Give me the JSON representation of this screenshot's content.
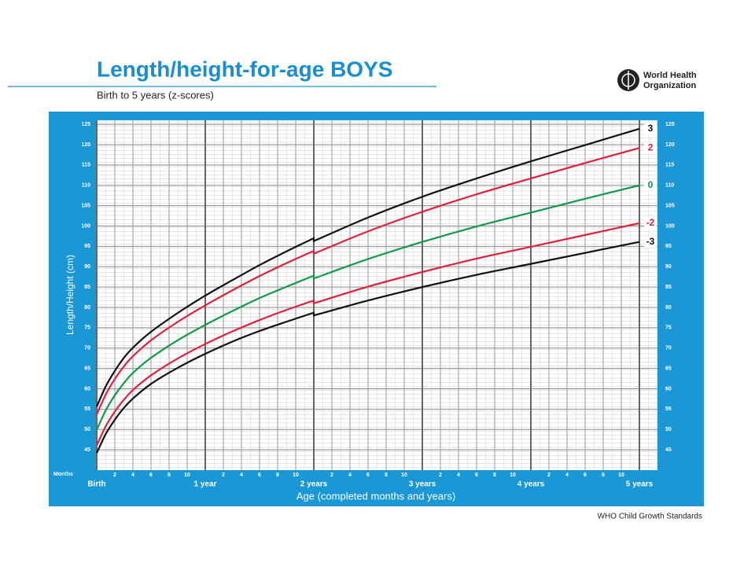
{
  "chart_data": {
    "type": "line",
    "title": "Length/height-for-age BOYS",
    "subtitle": "Birth to 5 years (z-scores)",
    "ylabel": "Length/Height (cm)",
    "xlabel": "Age (completed months and years)",
    "x_unit_label": "Months",
    "logo_text": [
      "World Health",
      "Organization"
    ],
    "source": "WHO Child Growth Standards",
    "x": [
      0,
      1,
      2,
      3,
      4,
      6,
      9,
      12,
      15,
      18,
      21,
      24,
      24,
      30,
      36,
      42,
      48,
      54,
      60
    ],
    "series": [
      {
        "name": "3",
        "color": "#111111",
        "values": [
          55.6,
          60.6,
          64.4,
          67.6,
          70.1,
          74.0,
          78.7,
          82.9,
          86.7,
          90.4,
          93.8,
          97.0,
          96.3,
          102.1,
          107.2,
          111.7,
          115.9,
          119.9,
          123.9
        ]
      },
      {
        "name": "2",
        "color": "#e0203c",
        "values": [
          53.7,
          58.6,
          62.4,
          65.5,
          68.0,
          71.9,
          76.5,
          80.5,
          84.2,
          87.7,
          90.9,
          93.9,
          93.2,
          98.7,
          103.5,
          107.8,
          111.7,
          115.5,
          119.2
        ]
      },
      {
        "name": "0",
        "color": "#109a4a",
        "values": [
          49.9,
          54.7,
          58.4,
          61.4,
          63.9,
          67.6,
          72.0,
          75.7,
          79.1,
          82.3,
          85.1,
          87.8,
          87.1,
          91.9,
          96.1,
          99.9,
          103.3,
          106.7,
          110.0
        ]
      },
      {
        "name": "-2",
        "color": "#e0203c",
        "values": [
          46.1,
          50.8,
          54.4,
          57.3,
          59.7,
          63.3,
          67.5,
          71.0,
          74.1,
          76.9,
          79.4,
          81.7,
          81.0,
          85.1,
          88.7,
          92.0,
          94.9,
          97.8,
          100.7
        ]
      },
      {
        "name": "-3",
        "color": "#111111",
        "values": [
          44.2,
          48.9,
          52.4,
          55.3,
          57.6,
          61.2,
          65.2,
          68.6,
          71.6,
          74.2,
          76.5,
          78.7,
          78.0,
          81.7,
          85.0,
          88.0,
          90.7,
          93.4,
          96.1
        ]
      }
    ],
    "xlim": [
      0,
      62
    ],
    "ylim": [
      40,
      126
    ],
    "xticks": [
      {
        "value": 0,
        "label": "Birth"
      },
      2,
      4,
      6,
      8,
      10,
      {
        "value": 12,
        "label": "1 year"
      },
      {
        "value": 14,
        "label": "2"
      },
      {
        "value": 16,
        "label": "4"
      },
      {
        "value": 18,
        "label": "6"
      },
      {
        "value": 20,
        "label": "8"
      },
      {
        "value": 22,
        "label": "10"
      },
      {
        "value": 24,
        "label": "2 years"
      },
      {
        "value": 26,
        "label": "2"
      },
      {
        "value": 28,
        "label": "4"
      },
      {
        "value": 30,
        "label": "6"
      },
      {
        "value": 32,
        "label": "8"
      },
      {
        "value": 34,
        "label": "10"
      },
      {
        "value": 36,
        "label": "3 years"
      },
      {
        "value": 38,
        "label": "2"
      },
      {
        "value": 40,
        "label": "4"
      },
      {
        "value": 42,
        "label": "6"
      },
      {
        "value": 44,
        "label": "8"
      },
      {
        "value": 46,
        "label": "10"
      },
      {
        "value": 48,
        "label": "4 years"
      },
      {
        "value": 50,
        "label": "2"
      },
      {
        "value": 52,
        "label": "4"
      },
      {
        "value": 54,
        "label": "6"
      },
      {
        "value": 56,
        "label": "8"
      },
      {
        "value": 58,
        "label": "10"
      },
      {
        "value": 60,
        "label": "5 years"
      }
    ],
    "yticks": [
      45,
      50,
      55,
      60,
      65,
      70,
      75,
      80,
      85,
      90,
      95,
      100,
      105,
      110,
      115,
      120,
      125
    ],
    "grid": true
  }
}
